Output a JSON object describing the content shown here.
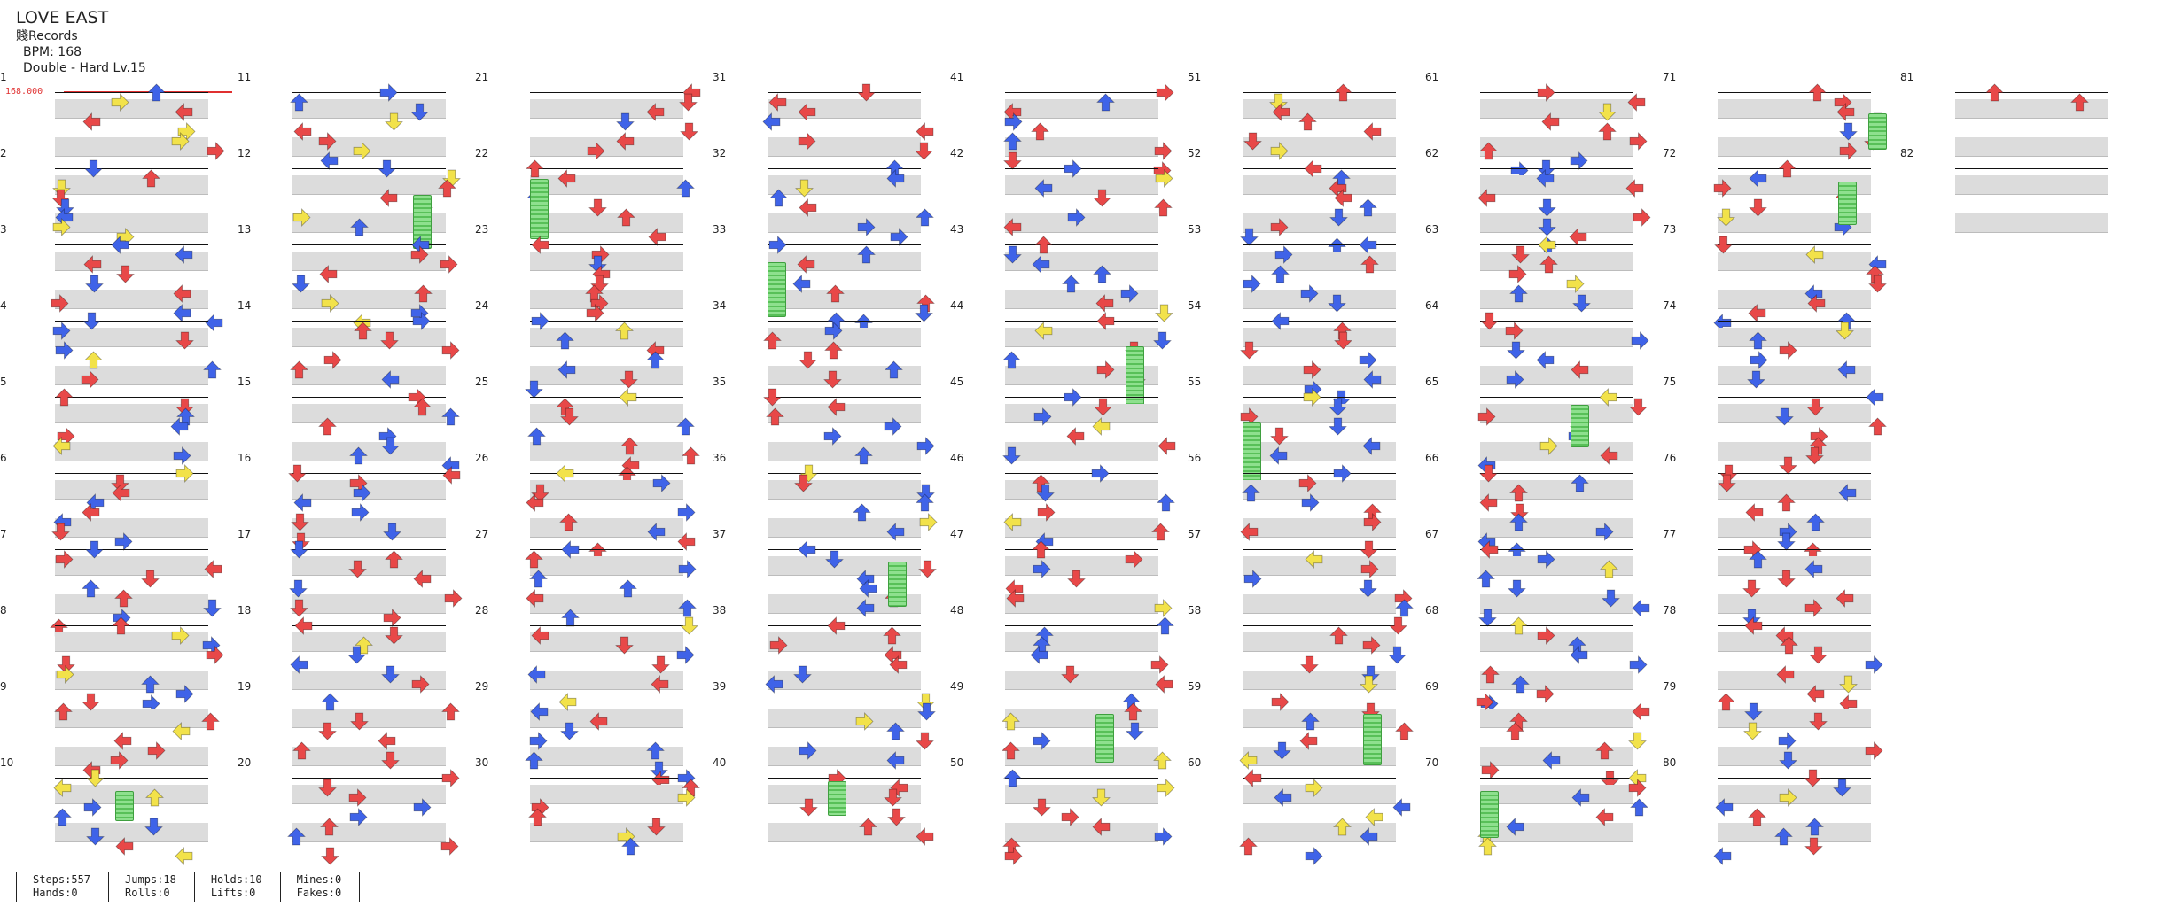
{
  "song": {
    "title": "LOVE EAST",
    "artist": "賤Records",
    "bpm_line": "BPM: 168",
    "difficulty_line": "Double - Hard  Lv.15"
  },
  "bpm_marker": {
    "label": "168.000",
    "color": "#e03030"
  },
  "colors": {
    "red_note": "#e84848",
    "blue_note": "#3f63e8",
    "yellow_note": "#f2e24a",
    "hold": "#7fd67f",
    "stripe": "#dcdcdc"
  },
  "measures": {
    "count": 82,
    "per_column": 10,
    "labels": [
      "1",
      "2",
      "3",
      "4",
      "5",
      "6",
      "7",
      "8",
      "9",
      "10",
      "11",
      "12",
      "13",
      "14",
      "15",
      "16",
      "17",
      "18",
      "19",
      "20",
      "21",
      "22",
      "23",
      "24",
      "25",
      "26",
      "27",
      "28",
      "29",
      "30",
      "31",
      "32",
      "33",
      "34",
      "35",
      "36",
      "37",
      "38",
      "39",
      "40",
      "41",
      "42",
      "43",
      "44",
      "45",
      "46",
      "47",
      "48",
      "49",
      "50",
      "51",
      "52",
      "53",
      "54",
      "55",
      "56",
      "57",
      "58",
      "59",
      "60",
      "61",
      "62",
      "63",
      "64",
      "65",
      "66",
      "67",
      "68",
      "69",
      "70",
      "71",
      "72",
      "73",
      "74",
      "75",
      "76",
      "77",
      "78",
      "79",
      "80",
      "81",
      "82"
    ]
  },
  "note_types": [
    "red-arrow",
    "blue-arrow",
    "yellow-arrow",
    "hold-body"
  ],
  "stats": {
    "steps": "Steps:557",
    "hands": "Hands:0",
    "jumps": "Jumps:18",
    "rolls": "Rolls:0",
    "holds": "Holds:10",
    "lifts": "Lifts:0",
    "mines": "Mines:0",
    "fakes": "Fakes:0"
  }
}
